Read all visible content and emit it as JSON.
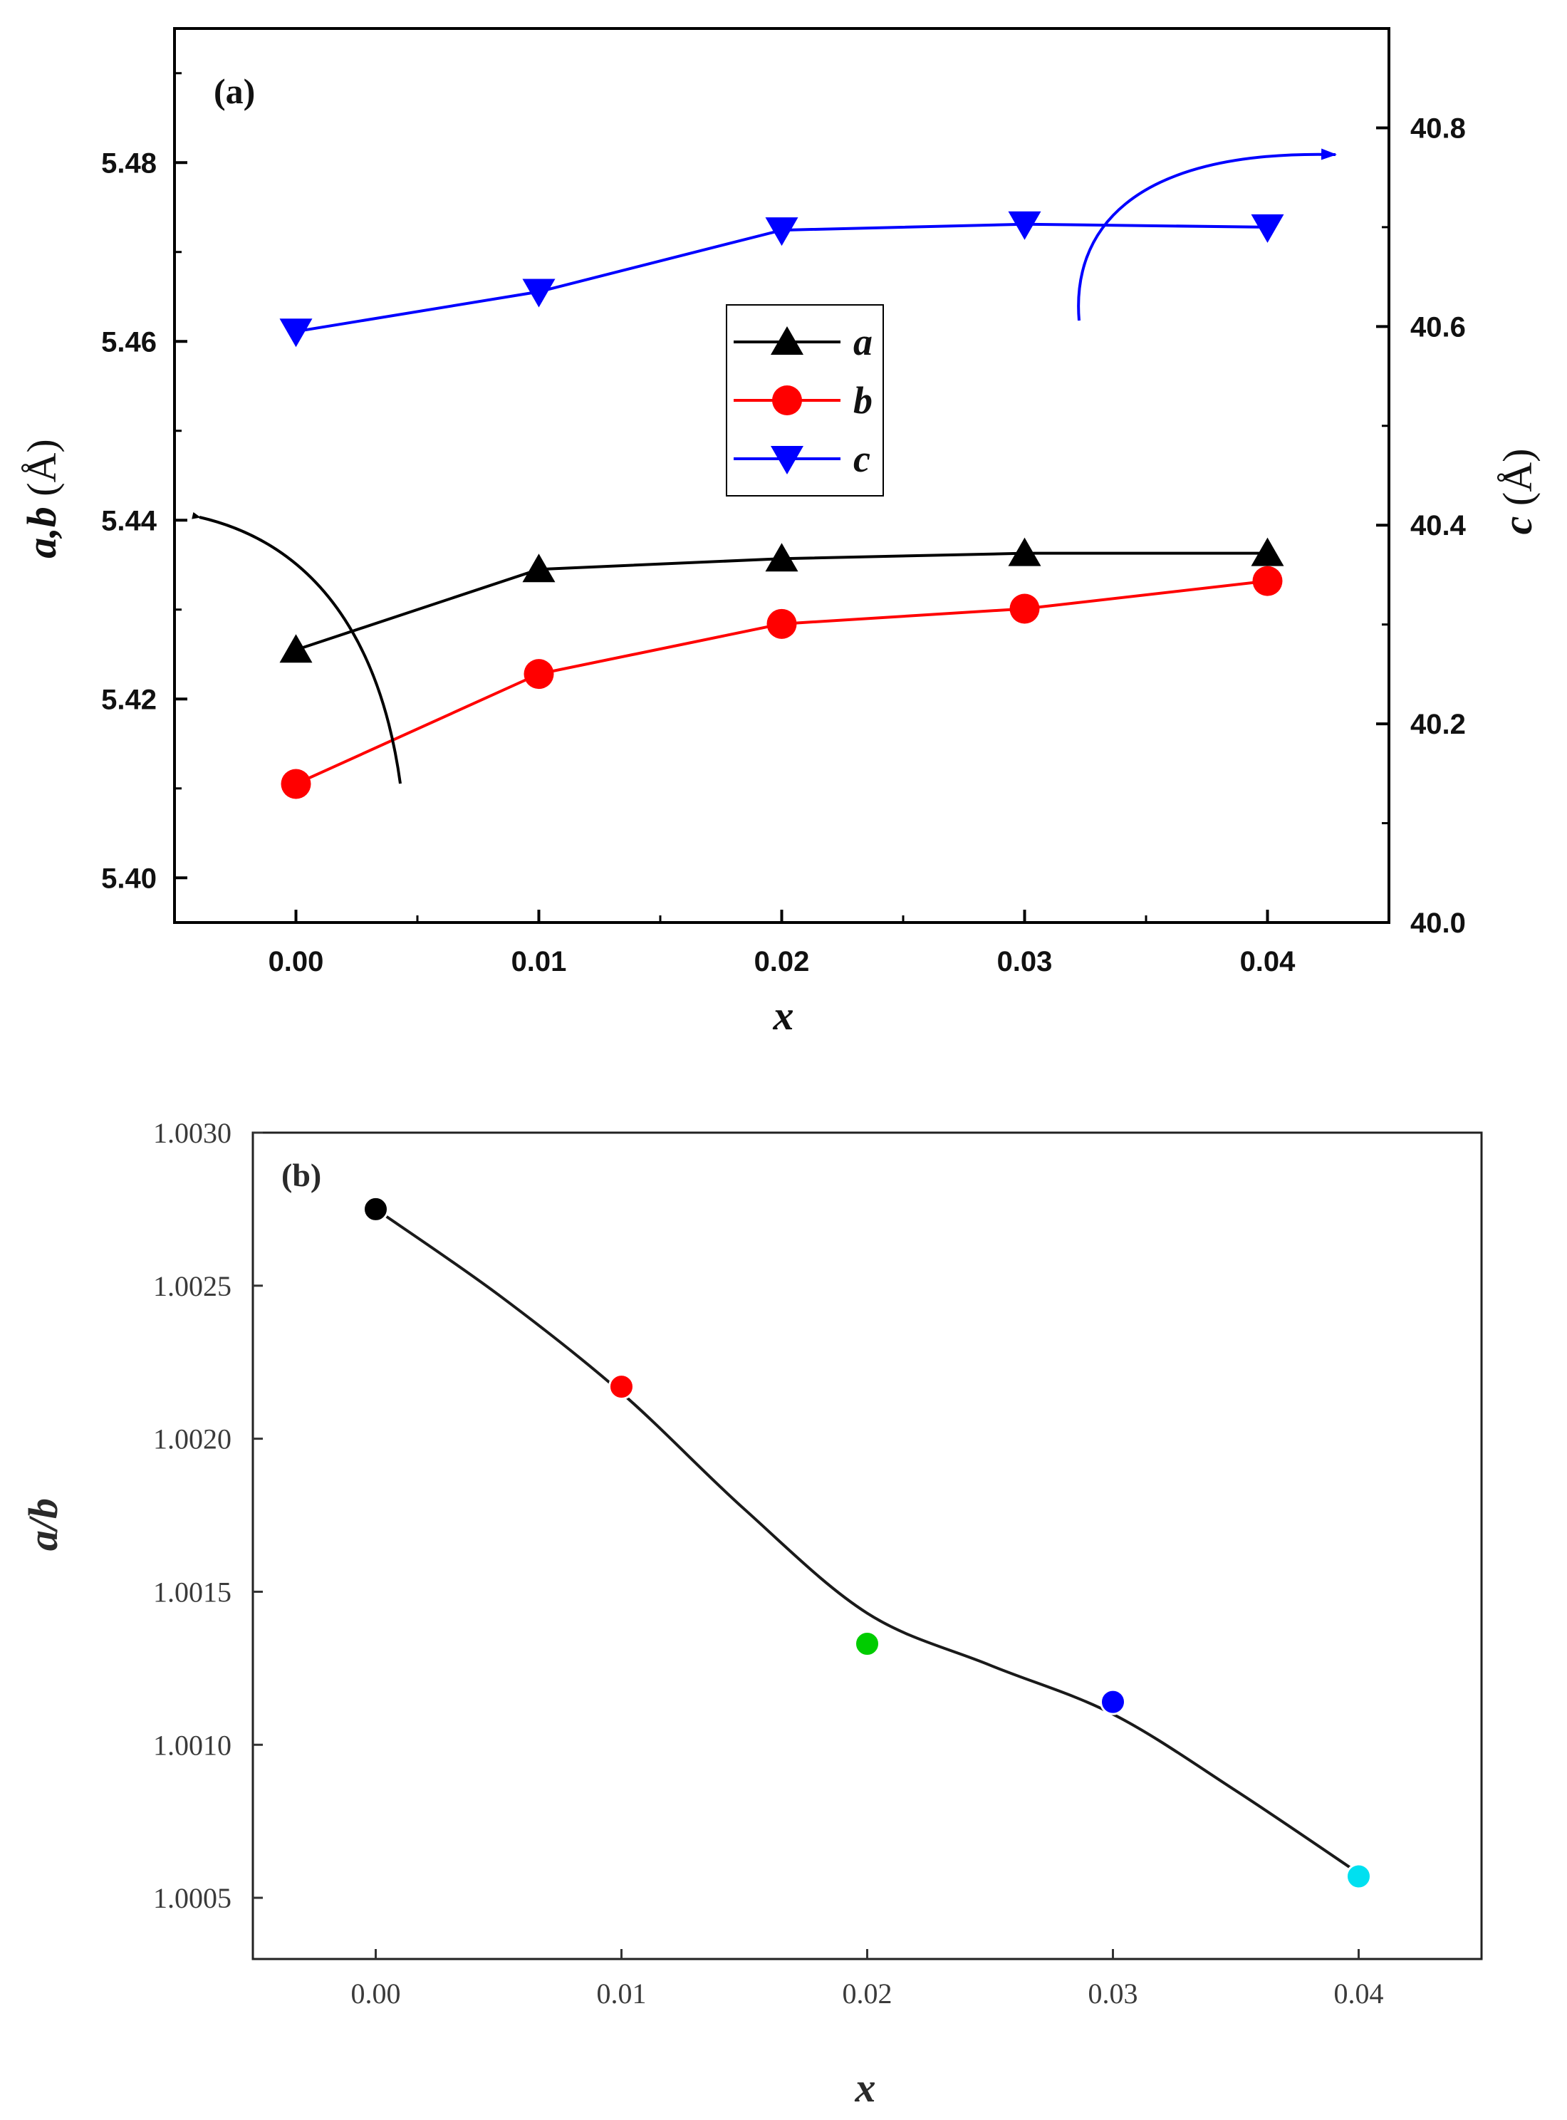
{
  "chart_data": [
    {
      "type": "line",
      "panel_label": "(a)",
      "xlabel": "x",
      "x": [
        0.0,
        0.01,
        0.02,
        0.03,
        0.04
      ],
      "xticks": [
        "0.00",
        "0.01",
        "0.02",
        "0.03",
        "0.04"
      ],
      "xlim": [
        -0.005,
        0.045
      ],
      "ylabel_left": "a,b",
      "ylabel_left_unit": "(Å)",
      "ylim_left": [
        5.395,
        5.495
      ],
      "yticks_left": [
        "5.40",
        "5.42",
        "5.44",
        "5.46",
        "5.48"
      ],
      "ylabel_right": "c",
      "ylabel_right_unit": "(Å)",
      "ylim_right": [
        40.0,
        40.9
      ],
      "yticks_right": [
        "40.0",
        "40.2",
        "40.4",
        "40.6",
        "40.8"
      ],
      "legend_position": "center",
      "series": [
        {
          "name": "a",
          "axis": "left",
          "color": "#000000",
          "marker": "triangle-up",
          "values": [
            5.4255,
            5.4345,
            5.4357,
            5.4363,
            5.4363
          ]
        },
        {
          "name": "b",
          "axis": "left",
          "color": "#ff0000",
          "marker": "circle",
          "values": [
            5.4105,
            5.4228,
            5.4284,
            5.4301,
            5.4332
          ]
        },
        {
          "name": "c",
          "axis": "right",
          "color": "#0000ff",
          "marker": "triangle-down",
          "values": [
            40.595,
            40.635,
            40.697,
            40.703,
            40.7
          ]
        }
      ]
    },
    {
      "type": "scatter",
      "panel_label": "(b)",
      "xlabel": "x",
      "ylabel": "a/b",
      "x": [
        0.0,
        0.01,
        0.02,
        0.03,
        0.04
      ],
      "xticks": [
        "0.00",
        "0.01",
        "0.02",
        "0.03",
        "0.04"
      ],
      "xlim": [
        -0.005,
        0.045
      ],
      "ylim": [
        1.0003,
        1.003
      ],
      "yticks": [
        "1.0005",
        "1.0010",
        "1.0015",
        "1.0020",
        "1.0025",
        "1.0030"
      ],
      "values": [
        1.00275,
        1.00217,
        1.00133,
        1.00114,
        1.00057
      ],
      "point_colors": [
        "#000000",
        "#ff0000",
        "#00cc00",
        "#0000ff",
        "#00e0f0"
      ],
      "fit_line": {
        "x": [
          0.0,
          0.005,
          0.01,
          0.015,
          0.02,
          0.025,
          0.03,
          0.035,
          0.04
        ],
        "y": [
          1.00275,
          1.00247,
          1.00215,
          1.00177,
          1.00143,
          1.00126,
          1.0011,
          1.00085,
          1.00058
        ]
      }
    }
  ]
}
